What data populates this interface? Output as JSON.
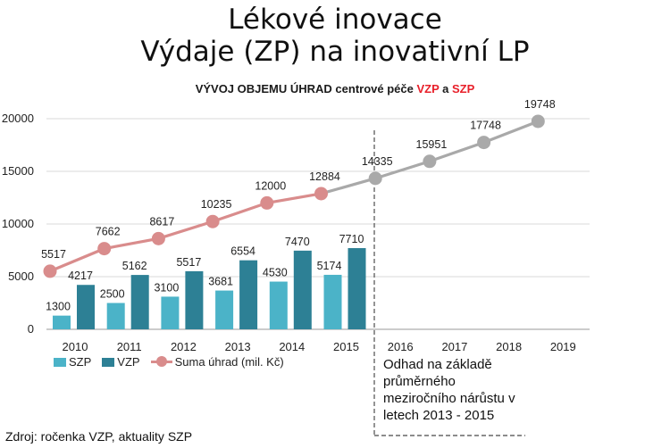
{
  "title_line1": "Lékové inovace",
  "title_line2": "Výdaje (ZP) na inovativní LP",
  "subtitle": {
    "prefix": "VÝVOJ OBJEMU ÚHRAD centrové péče ",
    "vzp": "VZP",
    "and": " a ",
    "szp": "SZP"
  },
  "note_lines": [
    "Odhad na základě",
    "průměrného",
    "meziročního  nárůstu v",
    "letech 2013 - 2015"
  ],
  "source": "Zdroj: ročenka VZP, aktuality SZP",
  "colors": {
    "szp": "#4bb3c8",
    "vzp": "#2d8095",
    "suma": "#d98c8c",
    "forecast": "#a9a9a9"
  },
  "chart_data": {
    "type": "bar",
    "categories": [
      "2010",
      "2011",
      "2012",
      "2013",
      "2014",
      "2015",
      "2016",
      "2017",
      "2018",
      "2019"
    ],
    "ylim": [
      0,
      20000
    ],
    "yticks": [
      0,
      5000,
      10000,
      15000,
      20000
    ],
    "grid": true,
    "legend_placement": "bottom-left",
    "series": [
      {
        "name": "SZP",
        "type": "bar",
        "values": [
          1300,
          2500,
          3100,
          3681,
          4530,
          5174,
          null,
          null,
          null,
          null
        ]
      },
      {
        "name": "VZP",
        "type": "bar",
        "values": [
          4217,
          5162,
          5517,
          6554,
          7470,
          7710,
          null,
          null,
          null,
          null
        ]
      },
      {
        "name": "Suma úhrad (mil. Kč)",
        "type": "line",
        "values": [
          5517,
          7662,
          8617,
          10235,
          12000,
          12884,
          null,
          null,
          null,
          null
        ]
      },
      {
        "type": "line",
        "values": [
          null,
          null,
          null,
          null,
          null,
          12884,
          14335,
          15951,
          17748,
          19748
        ]
      }
    ]
  }
}
